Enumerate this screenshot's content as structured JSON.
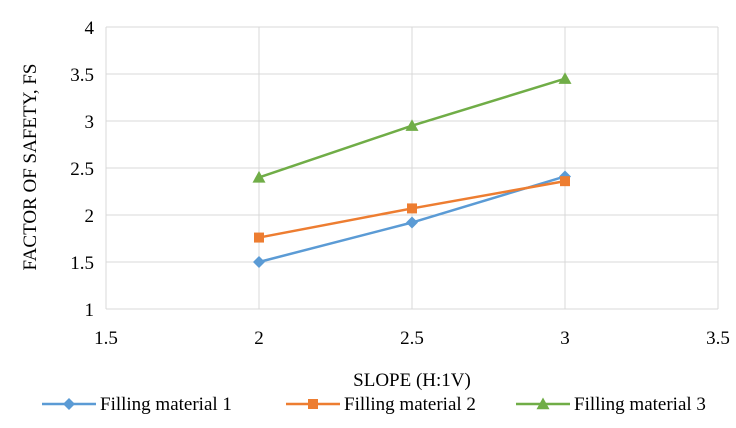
{
  "chart_data": {
    "type": "line",
    "title": "",
    "xlabel": "SLOPE (H:1V)",
    "ylabel": "FACTOR OF SAFETY, FS",
    "xlim": [
      1.5,
      3.5
    ],
    "ylim": [
      1,
      4
    ],
    "xticks": [
      1.5,
      2,
      2.5,
      3,
      3.5
    ],
    "xtick_labels": [
      "1.5",
      "2",
      "2.5",
      "3",
      "3.5"
    ],
    "yticks": [
      1,
      1.5,
      2,
      2.5,
      3,
      3.5,
      4
    ],
    "ytick_labels": [
      "1",
      "1.5",
      "2",
      "2.5",
      "3",
      "3.5",
      "4"
    ],
    "grid": true,
    "legend_position": "bottom",
    "series": [
      {
        "name": "Filling material 1",
        "color": "#5B9BD5",
        "marker": "diamond",
        "x": [
          2,
          2.5,
          3
        ],
        "y": [
          1.5,
          1.92,
          2.41
        ]
      },
      {
        "name": "Filling material 2",
        "color": "#ED7D31",
        "marker": "square",
        "x": [
          2,
          2.5,
          3
        ],
        "y": [
          1.76,
          2.07,
          2.36
        ]
      },
      {
        "name": "Filling material 3",
        "color": "#70AD47",
        "marker": "triangle",
        "x": [
          2,
          2.5,
          3
        ],
        "y": [
          2.4,
          2.95,
          3.45
        ]
      }
    ]
  }
}
